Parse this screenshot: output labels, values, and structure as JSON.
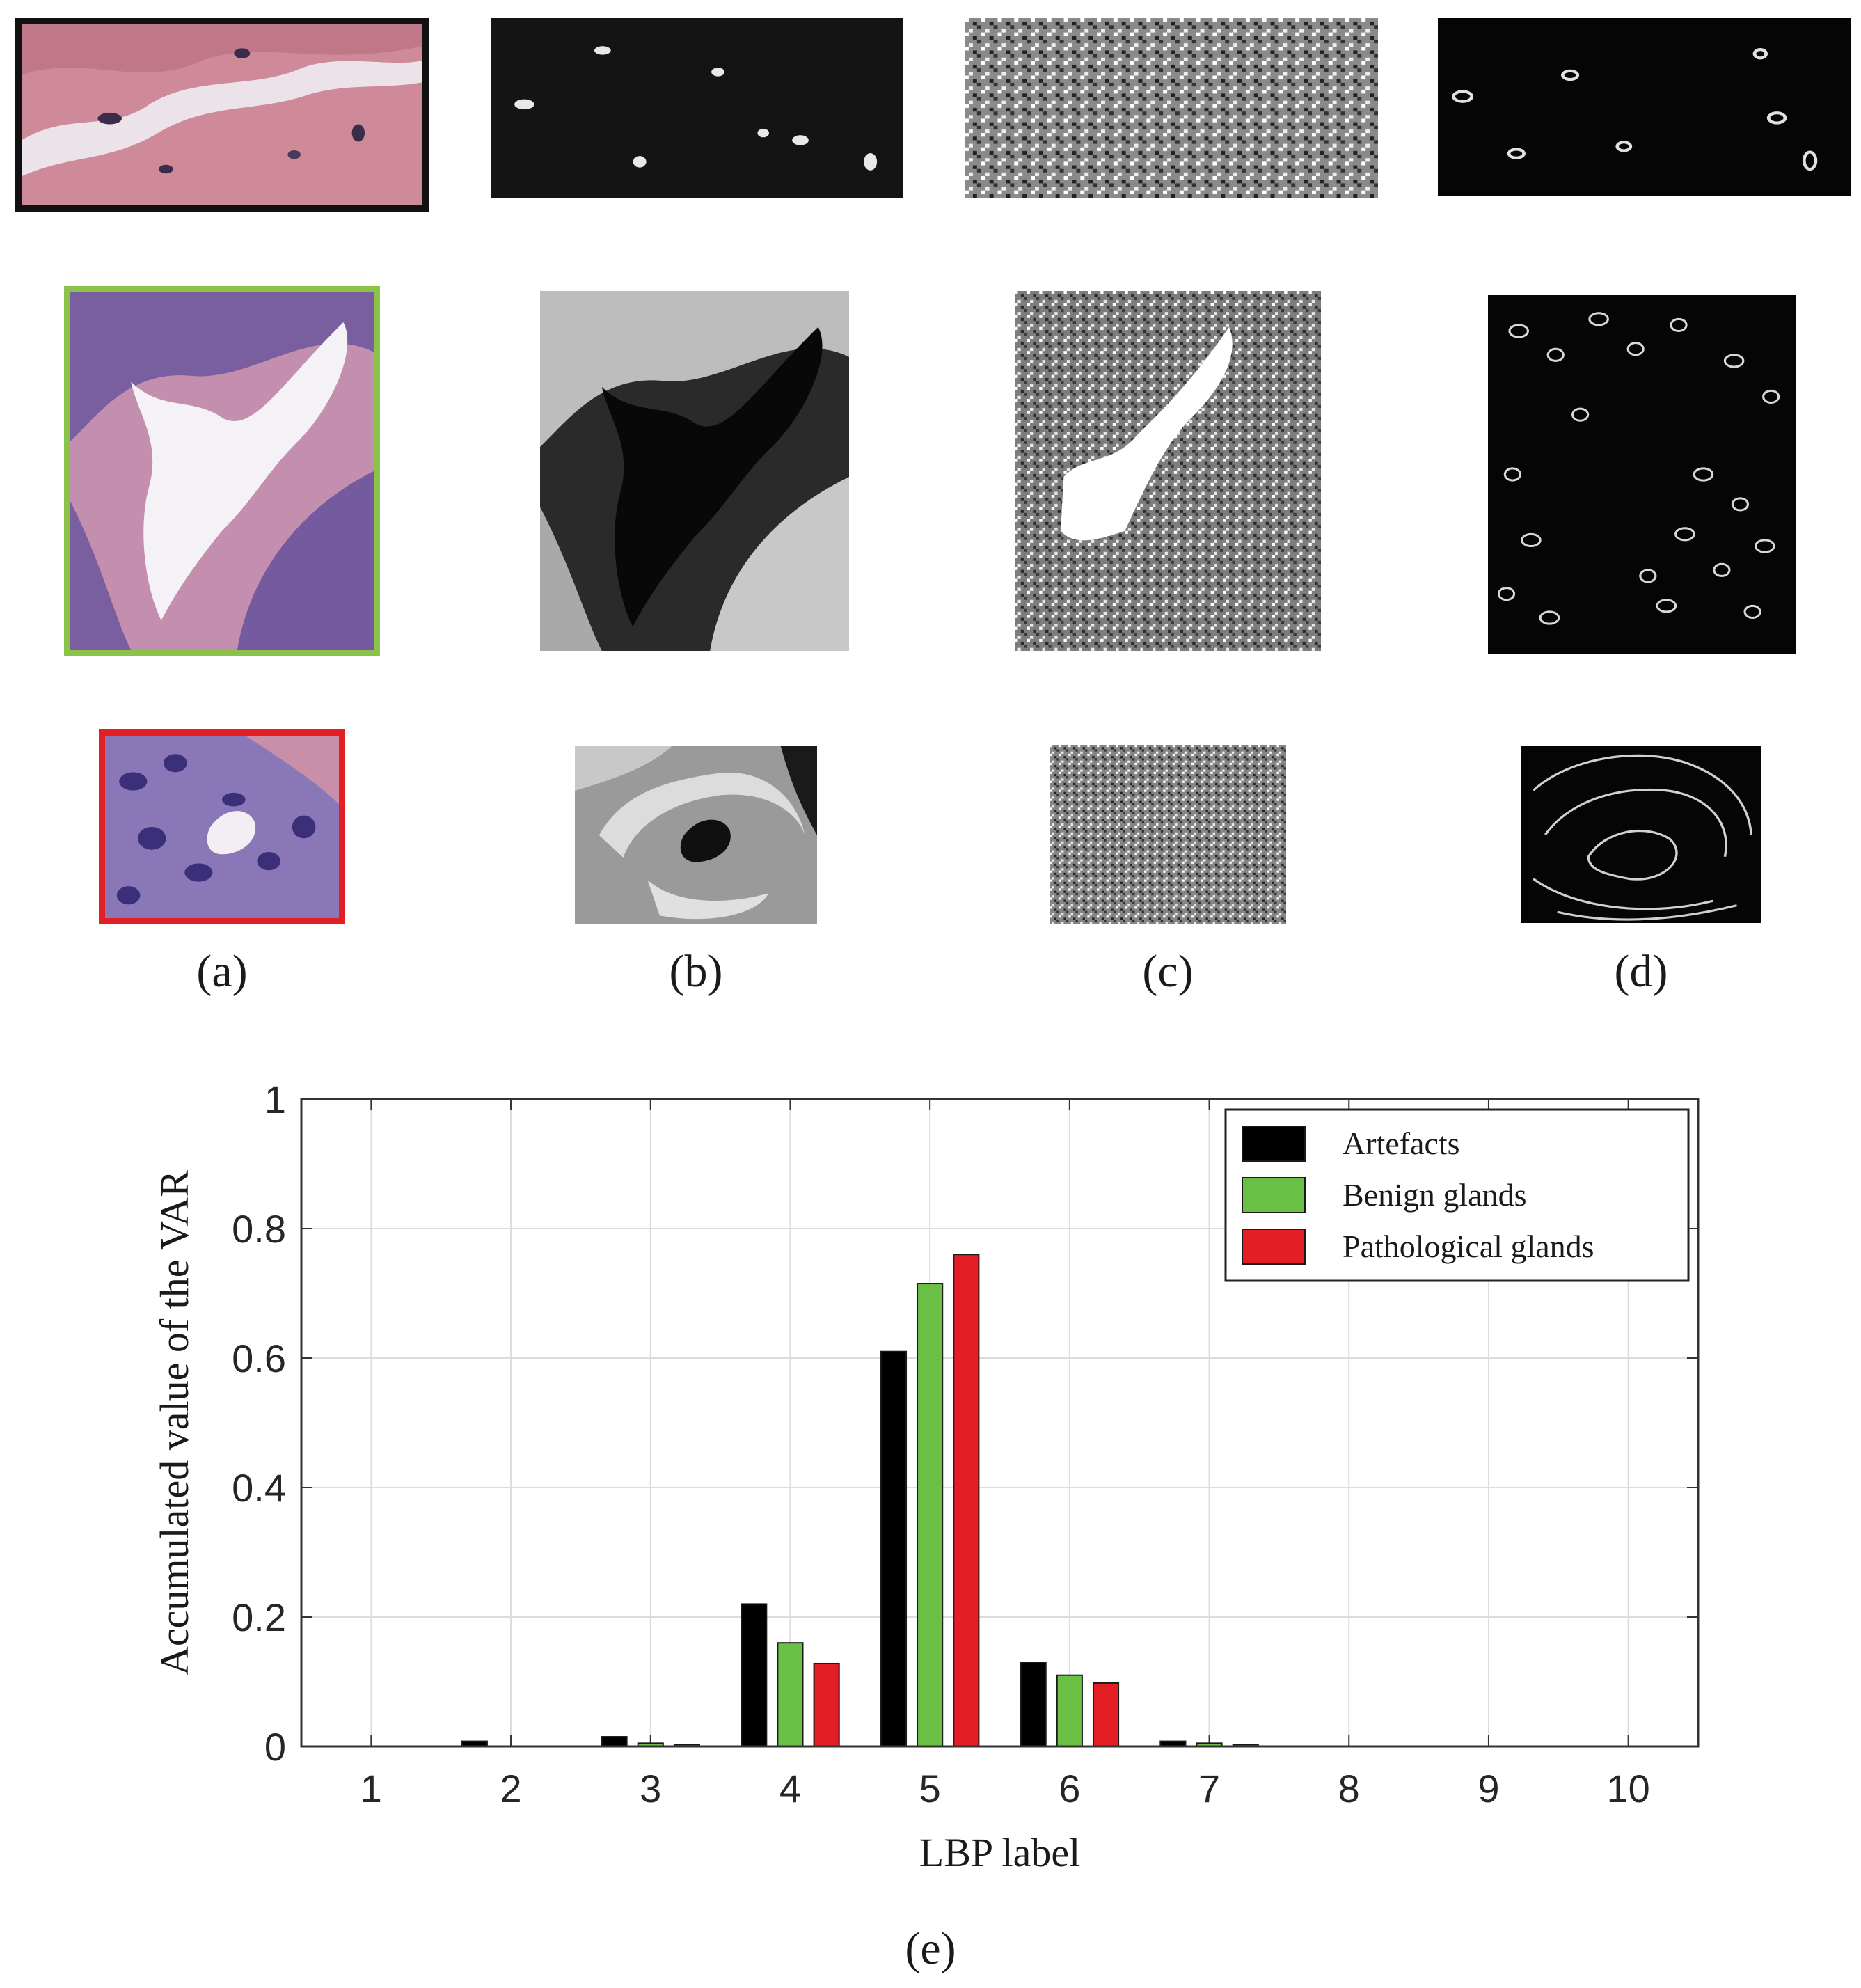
{
  "panels": {
    "labels": [
      "(a)",
      "(b)",
      "(c)",
      "(d)",
      "(e)"
    ],
    "row_frame_colors": [
      "#111111",
      "#8bc34a",
      "#e31e24"
    ]
  },
  "chart_data": {
    "type": "bar",
    "xlabel": "LBP label",
    "ylabel": "Accumulated value of the VAR",
    "categories": [
      "1",
      "2",
      "3",
      "4",
      "5",
      "6",
      "7",
      "8",
      "9",
      "10"
    ],
    "y_ticks": [
      "0",
      "0.2",
      "0.4",
      "0.6",
      "0.8",
      "1"
    ],
    "ylim": [
      0,
      1
    ],
    "grid": true,
    "legend_position": "top-right",
    "series": [
      {
        "name": "Artefacts",
        "color": "#000000",
        "values": [
          0,
          0.008,
          0.015,
          0.22,
          0.61,
          0.13,
          0.008,
          0,
          0,
          0
        ]
      },
      {
        "name": "Benign glands",
        "color": "#6abf45",
        "values": [
          0,
          0,
          0.005,
          0.16,
          0.715,
          0.11,
          0.005,
          0,
          0,
          0
        ]
      },
      {
        "name": "Pathological glands",
        "color": "#e31e24",
        "values": [
          0,
          0,
          0.003,
          0.128,
          0.76,
          0.098,
          0.003,
          0,
          0,
          0
        ]
      }
    ]
  }
}
